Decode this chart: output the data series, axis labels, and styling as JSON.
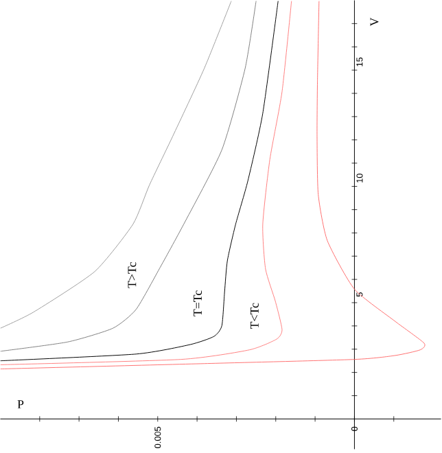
{
  "chart_data": {
    "type": "line",
    "xlabel": "P",
    "ylabel": "V",
    "xlim": [
      0.009,
      -0.0022
    ],
    "ylim": [
      -1.3,
      18
    ],
    "xticks": [
      {
        "value": 0.008,
        "label": null
      },
      {
        "value": 0.007,
        "label": null
      },
      {
        "value": 0.006,
        "label": null
      },
      {
        "value": 0.005,
        "label": "0.005"
      },
      {
        "value": 0.004,
        "label": null
      },
      {
        "value": 0.003,
        "label": null
      },
      {
        "value": 0.002,
        "label": null
      },
      {
        "value": 0.001,
        "label": null
      },
      0,
      {
        "value": -0.001,
        "label": null
      }
    ],
    "yticks": [
      {
        "value": 1,
        "label": null
      },
      {
        "value": 2,
        "label": null
      },
      {
        "value": 3,
        "label": null
      },
      {
        "value": 4,
        "label": null
      },
      5,
      {
        "value": 6,
        "label": null
      },
      {
        "value": 7,
        "label": null
      },
      {
        "value": 8,
        "label": null
      },
      {
        "value": 9,
        "label": null
      },
      10,
      {
        "value": 11,
        "label": null
      },
      {
        "value": 12,
        "label": null
      },
      {
        "value": 13,
        "label": null
      },
      {
        "value": 14,
        "label": null
      },
      15,
      {
        "value": 16,
        "label": null
      },
      {
        "value": 17,
        "label": null
      }
    ],
    "marker": "none",
    "line_style": "solid",
    "grid": false,
    "series": [
      {
        "color": "#a0a0a0",
        "values": [
          17.97,
          15.06,
          12.15,
          10.06,
          8.37,
          6.34,
          4.59,
          3.9
        ],
        "x": [
          0.00313,
          0.00382,
          0.00462,
          0.00521,
          0.00563,
          0.0066,
          0.00816,
          0.009
        ]
      },
      {
        "color": "#808080",
        "values": [
          17.97,
          15.06,
          11.57,
          8.37,
          6.45,
          4.71,
          3.9,
          3.31,
          2.91
        ],
        "x": [
          0.0025,
          0.00278,
          0.00337,
          0.00434,
          0.00496,
          0.00555,
          0.00614,
          0.00729,
          0.009
        ]
      },
      {
        "color": "#000000",
        "values": [
          17.97,
          13.14,
          10.23,
          8.37,
          6.8,
          5.47,
          4.01,
          3.55,
          3.2,
          2.79,
          2.5
        ],
        "x": [
          0.00194,
          0.00233,
          0.00271,
          0.00302,
          0.00323,
          0.0033,
          0.00337,
          0.00357,
          0.00417,
          0.00555,
          0.009
        ]
      },
      {
        "color": "#ff8080",
        "values": [
          17.97,
          14.07,
          11.16,
          8.37,
          6.45,
          5.06,
          3.84,
          3.43,
          2.97,
          2.56,
          2.33
        ],
        "x": [
          0.0016,
          0.00184,
          0.00215,
          0.00233,
          0.00226,
          0.00201,
          0.00184,
          0.00198,
          0.00267,
          0.00441,
          0.009
        ]
      },
      {
        "color": "#ff7070",
        "values": [
          17.97,
          14.48,
          12.15,
          9.65,
          7.67,
          5.58,
          4.19,
          3.26,
          2.97,
          2.73,
          2.56,
          2.38,
          2.15
        ],
        "x": [
          0.0009,
          0.00094,
          0.00095,
          0.00092,
          0.00069,
          0,
          -0.00104,
          -0.00177,
          -0.00167,
          -0.00104,
          0,
          0.00382,
          0.009
        ]
      }
    ],
    "annotations": [
      "T>Tc",
      "T=Tc",
      "T<Tc"
    ]
  }
}
